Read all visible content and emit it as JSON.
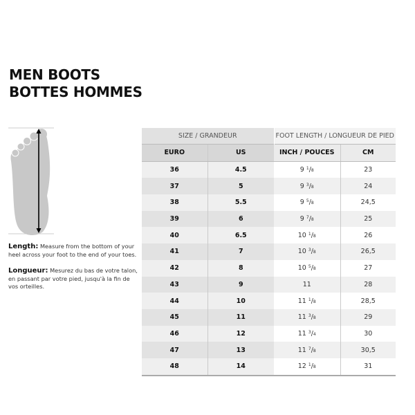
{
  "title": {
    "line1": "MEN BOOTS",
    "line2": "BOTTES HOMMES"
  },
  "instructions": {
    "en_label": "Length:",
    "en_text": "Measure from the bottom of your heel across your foot to the end of your toes.",
    "fr_label": "Longueur:",
    "fr_text": "Mesurez du bas de votre talon, en passant par votre pied, jusqu'à la fin de vos orteilles."
  },
  "table": {
    "group_headers": [
      "SIZE / GRANDEUR",
      "FOOT LENGTH / LONGUEUR DE PIED"
    ],
    "columns": [
      "EURO",
      "US",
      "INCH / POUCES",
      "CM"
    ],
    "rows": [
      {
        "euro": "36",
        "us": "4.5",
        "inch": {
          "whole": "9",
          "num": "1",
          "den": "8"
        },
        "cm": "23"
      },
      {
        "euro": "37",
        "us": "5",
        "inch": {
          "whole": "9",
          "num": "3",
          "den": "8"
        },
        "cm": "24"
      },
      {
        "euro": "38",
        "us": "5.5",
        "inch": {
          "whole": "9",
          "num": "5",
          "den": "8"
        },
        "cm": "24,5"
      },
      {
        "euro": "39",
        "us": "6",
        "inch": {
          "whole": "9",
          "num": "7",
          "den": "8"
        },
        "cm": "25"
      },
      {
        "euro": "40",
        "us": "6.5",
        "inch": {
          "whole": "10",
          "num": "1",
          "den": "8"
        },
        "cm": "26"
      },
      {
        "euro": "41",
        "us": "7",
        "inch": {
          "whole": "10",
          "num": "3",
          "den": "8"
        },
        "cm": "26,5"
      },
      {
        "euro": "42",
        "us": "8",
        "inch": {
          "whole": "10",
          "num": "5",
          "den": "8"
        },
        "cm": "27"
      },
      {
        "euro": "43",
        "us": "9",
        "inch": {
          "whole": "11"
        },
        "cm": "28"
      },
      {
        "euro": "44",
        "us": "10",
        "inch": {
          "whole": "11",
          "num": "1",
          "den": "8"
        },
        "cm": "28,5"
      },
      {
        "euro": "45",
        "us": "11",
        "inch": {
          "whole": "11",
          "num": "3",
          "den": "8"
        },
        "cm": "29"
      },
      {
        "euro": "46",
        "us": "12",
        "inch": {
          "whole": "11",
          "num": "3",
          "den": "4"
        },
        "cm": "30"
      },
      {
        "euro": "47",
        "us": "13",
        "inch": {
          "whole": "11",
          "num": "7",
          "den": "8"
        },
        "cm": "30,5"
      },
      {
        "euro": "48",
        "us": "14",
        "inch": {
          "whole": "12",
          "num": "1",
          "den": "8"
        },
        "cm": "31"
      }
    ]
  },
  "colors": {
    "foot": "#c8c8c8",
    "header_left": "#e1e1e1",
    "subheader": "#d7d7d7"
  }
}
